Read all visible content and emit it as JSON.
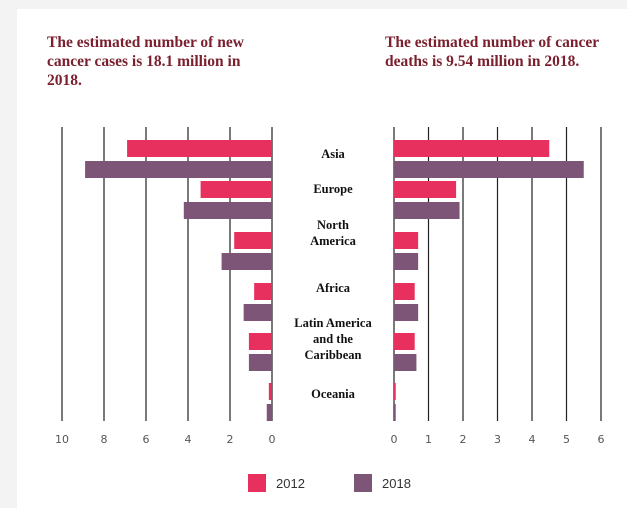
{
  "titles": {
    "left": "The estimated number of new cancer cases is 18.1 million in 2018.",
    "right": "The estimated number of cancer deaths is 9.54 million in 2018."
  },
  "colors": {
    "2012": "#e8305f",
    "2018": "#7d5576",
    "grid": "#222222"
  },
  "chart_data": [
    {
      "type": "bar",
      "orientation": "horizontal",
      "x_direction": "reversed",
      "title": "The estimated number of new cancer cases is 18.1 million in 2018.",
      "categories": [
        "Asia",
        "Europe",
        "North America",
        "Africa",
        "Latin America and the Caribbean",
        "Oceania"
      ],
      "category_labels": [
        [
          "Asia"
        ],
        [
          "Europe"
        ],
        [
          "North",
          "America"
        ],
        [
          "Africa"
        ],
        [
          "Latin America",
          "and the",
          "Caribbean"
        ],
        [
          "Oceania"
        ]
      ],
      "series": [
        {
          "name": "2012",
          "values": [
            6.9,
            3.4,
            1.8,
            0.85,
            1.1,
            0.15
          ]
        },
        {
          "name": "2018",
          "values": [
            8.9,
            4.2,
            2.4,
            1.35,
            1.1,
            0.25
          ]
        }
      ],
      "xlim": [
        0,
        10
      ],
      "xticks": [
        "10",
        "8",
        "6",
        "4",
        "2",
        "0"
      ],
      "grid": true
    },
    {
      "type": "bar",
      "orientation": "horizontal",
      "title": "The estimated number of cancer deaths is 9.54 million in 2018.",
      "categories": [
        "Asia",
        "Europe",
        "North America",
        "Africa",
        "Latin America and the Caribbean",
        "Oceania"
      ],
      "series": [
        {
          "name": "2012",
          "values": [
            4.5,
            1.8,
            0.7,
            0.6,
            0.6,
            0.05
          ]
        },
        {
          "name": "2018",
          "values": [
            5.5,
            1.9,
            0.7,
            0.7,
            0.65,
            0.05
          ]
        }
      ],
      "xlim": [
        0,
        6
      ],
      "xticks": [
        "0",
        "1",
        "2",
        "3",
        "4",
        "5",
        "6"
      ],
      "grid": true
    }
  ],
  "legend": [
    {
      "label": "2012",
      "color": "#e8305f"
    },
    {
      "label": "2018",
      "color": "#7d5576"
    }
  ]
}
